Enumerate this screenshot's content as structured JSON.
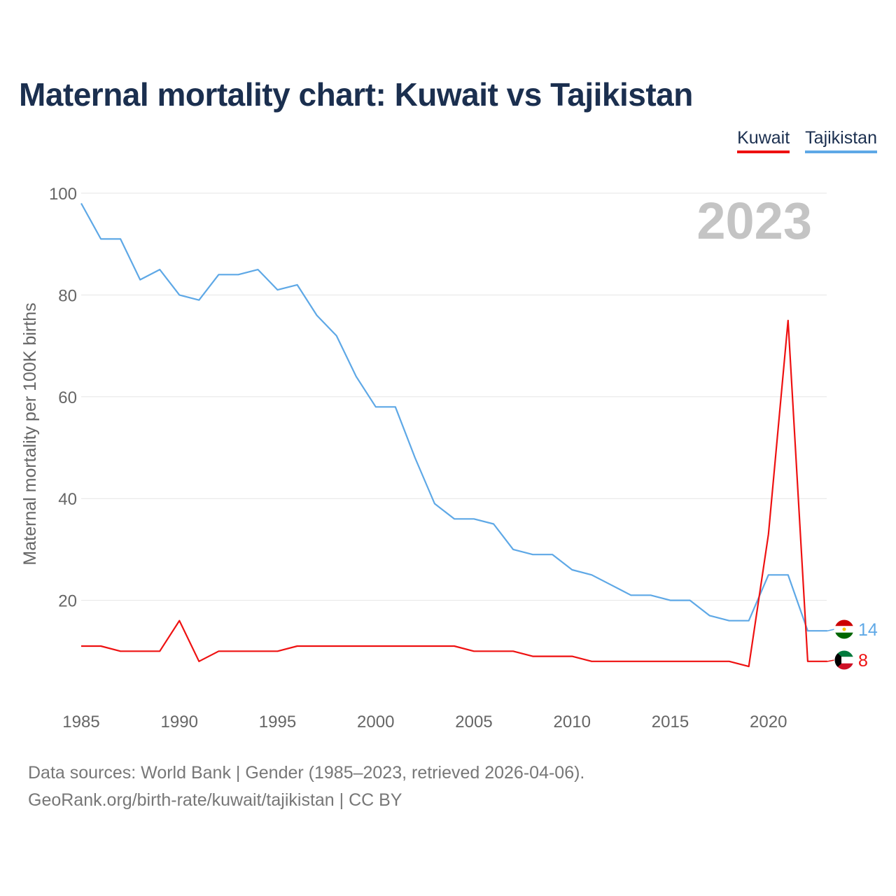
{
  "title": "Maternal mortality chart: Kuwait vs Tajikistan",
  "year_label": "2023",
  "legend": [
    {
      "label": "Kuwait",
      "color": "#ee1111"
    },
    {
      "label": "Tajikistan",
      "color": "#5ea8e6"
    }
  ],
  "footer": {
    "line1": "Data sources: World Bank | Gender (1985–2023, retrieved 2026-04-06).",
    "line2": "GeoRank.org/birth-rate/kuwait/tajikistan | CC BY"
  },
  "chart_data": {
    "type": "line",
    "title": "Maternal mortality chart: Kuwait vs Tajikistan",
    "xlabel": "",
    "ylabel": "Maternal mortality per 100K births",
    "xlim": [
      1985,
      2023
    ],
    "ylim": [
      0,
      100
    ],
    "yticks": [
      20,
      40,
      60,
      80,
      100
    ],
    "xticks": [
      1985,
      1990,
      1995,
      2000,
      2005,
      2010,
      2015,
      2020
    ],
    "grid": true,
    "legend_position": "top-right",
    "x": [
      1985,
      1986,
      1987,
      1988,
      1989,
      1990,
      1991,
      1992,
      1993,
      1994,
      1995,
      1996,
      1997,
      1998,
      1999,
      2000,
      2001,
      2002,
      2003,
      2004,
      2005,
      2006,
      2007,
      2008,
      2009,
      2010,
      2011,
      2012,
      2013,
      2014,
      2015,
      2016,
      2017,
      2018,
      2019,
      2020,
      2021,
      2022,
      2023
    ],
    "series": [
      {
        "name": "Kuwait",
        "color": "#ee1111",
        "end_label": "8",
        "values": [
          11,
          11,
          10,
          10,
          10,
          16,
          8,
          10,
          10,
          10,
          10,
          11,
          11,
          11,
          11,
          11,
          11,
          11,
          11,
          11,
          10,
          10,
          10,
          9,
          9,
          9,
          8,
          8,
          8,
          8,
          8,
          8,
          8,
          8,
          7,
          33,
          75,
          8,
          8
        ]
      },
      {
        "name": "Tajikistan",
        "color": "#5ea8e6",
        "end_label": "14",
        "values": [
          98,
          91,
          91,
          83,
          85,
          80,
          79,
          84,
          84,
          85,
          81,
          82,
          76,
          72,
          64,
          58,
          58,
          48,
          39,
          36,
          36,
          35,
          30,
          29,
          29,
          26,
          25,
          23,
          21,
          21,
          20,
          20,
          17,
          16,
          16,
          25,
          25,
          14,
          14
        ]
      }
    ]
  }
}
